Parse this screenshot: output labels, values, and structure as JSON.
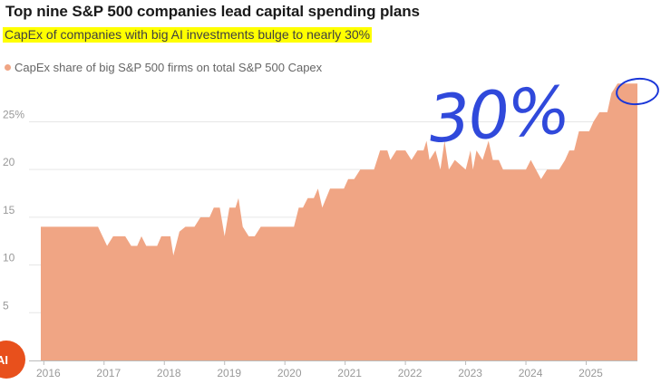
{
  "chart_data": {
    "type": "area",
    "title": "Top nine S&P 500 companies lead capital spending plans",
    "subtitle": "CapEx of companies with big AI investments bulge to nearly 30%",
    "legend": "CapEx share of big S&P 500 firms on total S&P 500 Capex",
    "series_color": "#f0a584",
    "y_ticks": [
      {
        "value": 5,
        "label": "5"
      },
      {
        "value": 10,
        "label": "10"
      },
      {
        "value": 15,
        "label": "15"
      },
      {
        "value": 20,
        "label": "20"
      },
      {
        "value": 25,
        "label": "25%"
      }
    ],
    "x_ticks": [
      {
        "value": 2016,
        "label": "2016"
      },
      {
        "value": 2017,
        "label": "2017"
      },
      {
        "value": 2018,
        "label": "2018"
      },
      {
        "value": 2019,
        "label": "2019"
      },
      {
        "value": 2020,
        "label": "2020"
      },
      {
        "value": 2021,
        "label": "2021"
      },
      {
        "value": 2022,
        "label": "2022"
      },
      {
        "value": 2023,
        "label": "2023"
      },
      {
        "value": 2024,
        "label": "2024"
      },
      {
        "value": 2025,
        "label": "2025"
      }
    ],
    "xlim": [
      2015.95,
      2025.85
    ],
    "ylim": [
      0,
      29.5
    ],
    "points": [
      [
        2015.95,
        14
      ],
      [
        2016.9,
        14
      ],
      [
        2017.05,
        12
      ],
      [
        2017.15,
        13
      ],
      [
        2017.35,
        13
      ],
      [
        2017.45,
        12
      ],
      [
        2017.55,
        12
      ],
      [
        2017.62,
        13
      ],
      [
        2017.7,
        12
      ],
      [
        2017.88,
        12
      ],
      [
        2017.95,
        13
      ],
      [
        2018.1,
        13
      ],
      [
        2018.15,
        11
      ],
      [
        2018.25,
        13.5
      ],
      [
        2018.35,
        14
      ],
      [
        2018.5,
        14
      ],
      [
        2018.6,
        15
      ],
      [
        2018.75,
        15
      ],
      [
        2018.82,
        16
      ],
      [
        2018.92,
        16
      ],
      [
        2019.0,
        13
      ],
      [
        2019.08,
        16
      ],
      [
        2019.18,
        16
      ],
      [
        2019.23,
        17
      ],
      [
        2019.3,
        14
      ],
      [
        2019.4,
        13
      ],
      [
        2019.5,
        13
      ],
      [
        2019.6,
        14
      ],
      [
        2020.15,
        14
      ],
      [
        2020.23,
        16
      ],
      [
        2020.3,
        16
      ],
      [
        2020.38,
        17
      ],
      [
        2020.48,
        17
      ],
      [
        2020.55,
        18
      ],
      [
        2020.62,
        16
      ],
      [
        2020.75,
        18
      ],
      [
        2020.98,
        18
      ],
      [
        2021.05,
        19
      ],
      [
        2021.15,
        19
      ],
      [
        2021.25,
        20
      ],
      [
        2021.48,
        20
      ],
      [
        2021.58,
        22
      ],
      [
        2021.7,
        22
      ],
      [
        2021.75,
        21
      ],
      [
        2021.85,
        22
      ],
      [
        2022.0,
        22
      ],
      [
        2022.1,
        21
      ],
      [
        2022.2,
        22
      ],
      [
        2022.3,
        22
      ],
      [
        2022.35,
        23
      ],
      [
        2022.4,
        21
      ],
      [
        2022.5,
        22
      ],
      [
        2022.58,
        20
      ],
      [
        2022.65,
        23
      ],
      [
        2022.72,
        20
      ],
      [
        2022.82,
        21
      ],
      [
        2023.0,
        20
      ],
      [
        2023.08,
        22
      ],
      [
        2023.12,
        20
      ],
      [
        2023.18,
        22
      ],
      [
        2023.28,
        21
      ],
      [
        2023.38,
        23
      ],
      [
        2023.45,
        21
      ],
      [
        2023.55,
        21
      ],
      [
        2023.62,
        20
      ],
      [
        2024.0,
        20
      ],
      [
        2024.08,
        21
      ],
      [
        2024.25,
        19
      ],
      [
        2024.35,
        20
      ],
      [
        2024.55,
        20
      ],
      [
        2024.65,
        21
      ],
      [
        2024.72,
        22
      ],
      [
        2024.8,
        22
      ],
      [
        2024.88,
        24
      ],
      [
        2025.05,
        24
      ],
      [
        2025.12,
        25
      ],
      [
        2025.22,
        26
      ],
      [
        2025.35,
        26
      ],
      [
        2025.42,
        28
      ],
      [
        2025.52,
        29
      ],
      [
        2025.85,
        29
      ]
    ]
  },
  "annotation": {
    "text": "30%",
    "color": "#1a36d8"
  },
  "badge": {
    "label": "AI",
    "color": "#e8501c"
  }
}
